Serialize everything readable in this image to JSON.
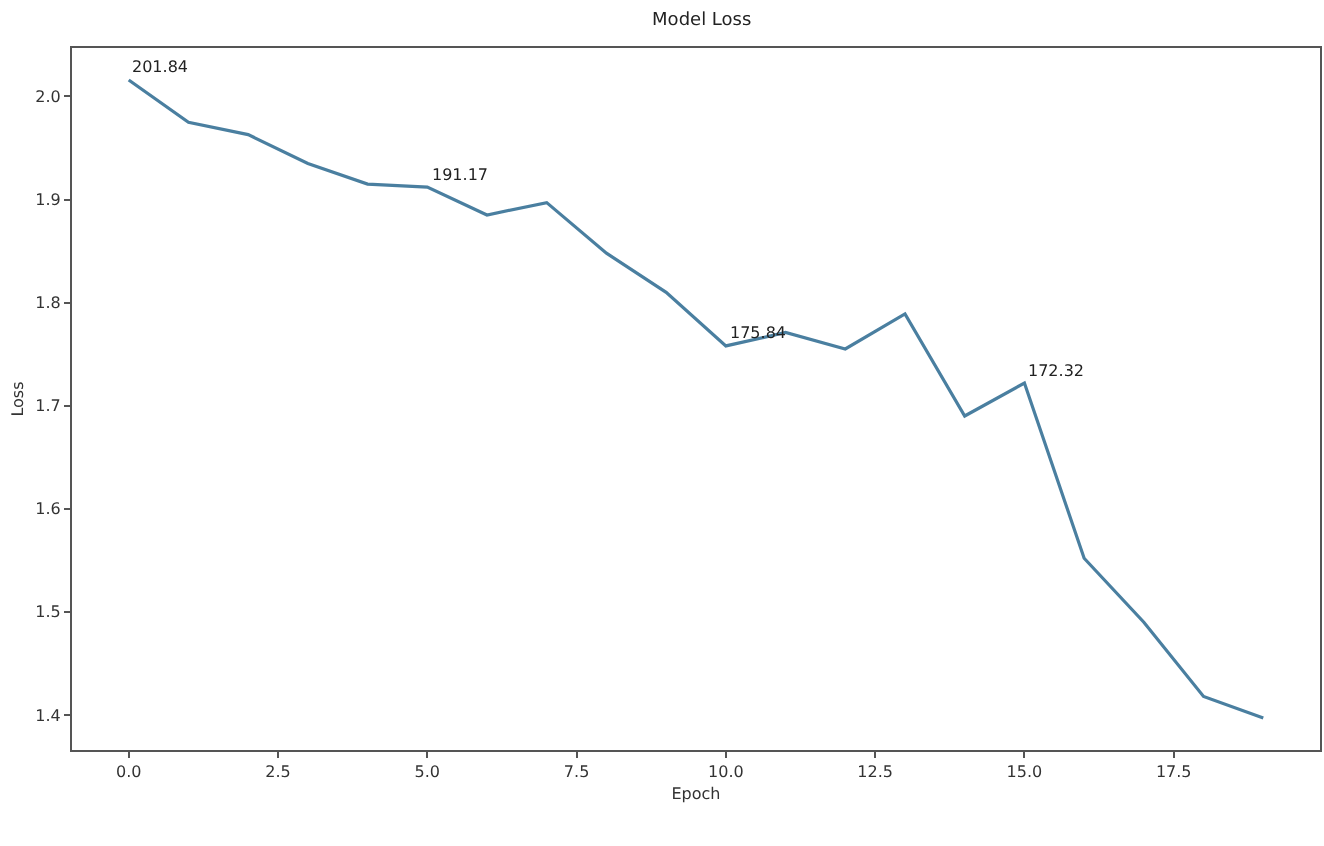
{
  "chart_data": {
    "type": "line",
    "title": "Model Loss",
    "xlabel": "Epoch",
    "ylabel": "Loss",
    "x": [
      0,
      1,
      2,
      3,
      4,
      5,
      6,
      7,
      8,
      9,
      10,
      11,
      12,
      13,
      14,
      15,
      16,
      17,
      18,
      19
    ],
    "series": [
      {
        "color": "#4a7fa0",
        "values": [
          2.016,
          1.975,
          1.963,
          1.935,
          1.915,
          1.912,
          1.885,
          1.897,
          1.848,
          1.81,
          1.758,
          1.771,
          1.755,
          1.789,
          1.69,
          1.722,
          1.552,
          1.49,
          1.418,
          1.397
        ]
      }
    ],
    "xlim": [
      -0.95,
      19.95
    ],
    "xticks": [
      {
        "value": 0,
        "label": "0.0"
      },
      {
        "value": 2.5,
        "label": "2.5"
      },
      {
        "value": 5,
        "label": "5.0"
      },
      {
        "value": 7.5,
        "label": "7.5"
      },
      {
        "value": 10,
        "label": "10.0"
      },
      {
        "value": 12.5,
        "label": "12.5"
      },
      {
        "value": 15,
        "label": "15.0"
      },
      {
        "value": 17.5,
        "label": "17.5"
      }
    ],
    "ylim": [
      1.366,
      2.047
    ],
    "yticks": [
      {
        "value": 1.4,
        "label": "1.4"
      },
      {
        "value": 1.5,
        "label": "1.5"
      },
      {
        "value": 1.6,
        "label": "1.6"
      },
      {
        "value": 1.7,
        "label": "1.7"
      },
      {
        "value": 1.8,
        "label": "1.8"
      },
      {
        "value": 1.9,
        "label": "1.9"
      },
      {
        "value": 2.0,
        "label": "2.0"
      }
    ],
    "annotations": [
      {
        "text": "201.84",
        "x": 0,
        "y": 2.016
      },
      {
        "text": "191.17",
        "x": 5,
        "y": 1.912
      },
      {
        "text": "175.84",
        "x": 10,
        "y": 1.758
      },
      {
        "text": "172.32",
        "x": 15,
        "y": 1.722
      }
    ],
    "grid": false,
    "marker": "none",
    "line_style": "solid"
  }
}
